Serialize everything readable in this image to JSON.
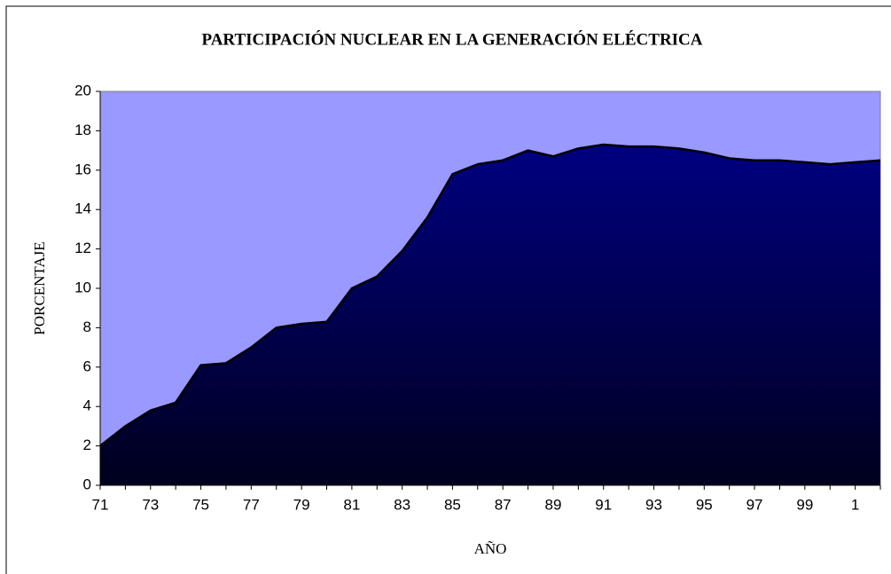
{
  "chart_data": {
    "type": "area",
    "title": "PARTICIPACIÓN NUCLEAR EN LA GENERACIÓN ELÉCTRICA",
    "y_label": "PORCENTAJE",
    "x_label": "AÑO",
    "categories": [
      "71",
      null,
      "73",
      null,
      "75",
      null,
      "77",
      null,
      "79",
      null,
      "81",
      null,
      "83",
      null,
      "85",
      null,
      "87",
      null,
      "89",
      null,
      "91",
      null,
      "93",
      null,
      "95",
      null,
      "97",
      null,
      "99",
      null,
      "1",
      null
    ],
    "values": [
      2.0,
      3.0,
      3.8,
      4.2,
      6.1,
      6.2,
      7.0,
      8.0,
      8.2,
      8.3,
      10.0,
      10.6,
      11.9,
      13.6,
      15.8,
      16.3,
      16.5,
      17.0,
      16.7,
      17.1,
      17.3,
      17.2,
      17.2,
      17.1,
      16.9,
      16.6,
      16.5,
      16.5,
      16.4,
      16.3,
      16.4,
      16.5
    ],
    "color": "#000080",
    "background": "#9999ff",
    "ylim": [
      0,
      20
    ],
    "yticks": [
      0,
      2,
      4,
      6,
      8,
      10,
      12,
      14,
      16,
      18,
      20
    ]
  }
}
